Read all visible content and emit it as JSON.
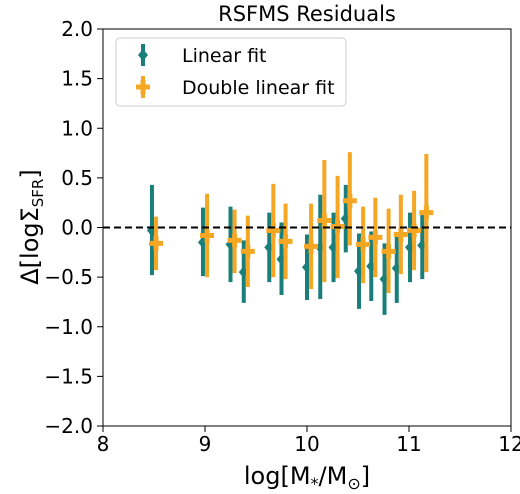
{
  "chart_data": {
    "type": "scatter",
    "title": "RSFMS Residuals",
    "xlabel_main": "log[M",
    "xlabel_sub1": "*",
    "xlabel_mid": "/M",
    "xlabel_sub2": "⊙",
    "xlabel_end": "]",
    "ylabel_main": "Δ[logΣ",
    "ylabel_sub": "SFR",
    "ylabel_end": "]",
    "xlim": [
      8,
      12
    ],
    "ylim": [
      -2.0,
      2.0
    ],
    "xticks": [
      8,
      9,
      10,
      11,
      12
    ],
    "xtick_labels": [
      "8",
      "9",
      "10",
      "11",
      "12"
    ],
    "yticks": [
      2.0,
      1.5,
      1.0,
      0.5,
      0.0,
      -0.5,
      -1.0,
      -1.5,
      -2.0
    ],
    "ytick_labels": [
      "2.0",
      "1.5",
      "1.0",
      "0.5",
      "0.0",
      "−0.5",
      "−1.0",
      "−1.5",
      "−2.0"
    ],
    "reference_line": {
      "y": 0.0,
      "style": "dashed",
      "color": "#000000"
    },
    "grid": false,
    "legend_position": "top-left",
    "series": [
      {
        "name": "Linear fit",
        "color": "#1a7f7a",
        "marker": "diamond",
        "points": [
          {
            "x": 8.48,
            "y": -0.03,
            "ylo": -0.48,
            "yhi": 0.43
          },
          {
            "x": 8.98,
            "y": -0.15,
            "ylo": -0.49,
            "yhi": 0.2
          },
          {
            "x": 9.25,
            "y": -0.17,
            "ylo": -0.55,
            "yhi": 0.21
          },
          {
            "x": 9.38,
            "y": -0.45,
            "ylo": -0.76,
            "yhi": -0.13
          },
          {
            "x": 9.63,
            "y": -0.2,
            "ylo": -0.55,
            "yhi": 0.15
          },
          {
            "x": 9.75,
            "y": -0.32,
            "ylo": -0.68,
            "yhi": 0.05
          },
          {
            "x": 10.0,
            "y": -0.4,
            "ylo": -0.73,
            "yhi": -0.07
          },
          {
            "x": 10.13,
            "y": -0.2,
            "ylo": -0.72,
            "yhi": 0.33
          },
          {
            "x": 10.26,
            "y": -0.2,
            "ylo": -0.55,
            "yhi": 0.15
          },
          {
            "x": 10.38,
            "y": 0.09,
            "ylo": -0.25,
            "yhi": 0.43
          },
          {
            "x": 10.51,
            "y": -0.44,
            "ylo": -0.82,
            "yhi": -0.06
          },
          {
            "x": 10.63,
            "y": -0.39,
            "ylo": -0.74,
            "yhi": -0.04
          },
          {
            "x": 10.76,
            "y": -0.52,
            "ylo": -0.88,
            "yhi": -0.16
          },
          {
            "x": 10.88,
            "y": -0.41,
            "ylo": -0.76,
            "yhi": -0.06
          },
          {
            "x": 11.01,
            "y": -0.2,
            "ylo": -0.55,
            "yhi": 0.15
          },
          {
            "x": 11.13,
            "y": -0.18,
            "ylo": -0.52,
            "yhi": 0.16
          }
        ]
      },
      {
        "name": "Double linear fit",
        "color": "#f5a623",
        "marker": "plus",
        "points": [
          {
            "x": 8.52,
            "y": -0.16,
            "ylo": -0.43,
            "yhi": 0.11
          },
          {
            "x": 9.02,
            "y": -0.08,
            "ylo": -0.5,
            "yhi": 0.34
          },
          {
            "x": 9.29,
            "y": -0.13,
            "ylo": -0.46,
            "yhi": 0.18
          },
          {
            "x": 9.42,
            "y": -0.24,
            "ylo": -0.6,
            "yhi": 0.12
          },
          {
            "x": 9.67,
            "y": -0.03,
            "ylo": -0.5,
            "yhi": 0.44
          },
          {
            "x": 9.79,
            "y": -0.14,
            "ylo": -0.52,
            "yhi": 0.24
          },
          {
            "x": 10.04,
            "y": -0.19,
            "ylo": -0.62,
            "yhi": 0.24
          },
          {
            "x": 10.17,
            "y": 0.07,
            "ylo": -0.55,
            "yhi": 0.68
          },
          {
            "x": 10.3,
            "y": 0.01,
            "ylo": -0.51,
            "yhi": 0.52
          },
          {
            "x": 10.42,
            "y": 0.27,
            "ylo": -0.18,
            "yhi": 0.76
          },
          {
            "x": 10.55,
            "y": -0.17,
            "ylo": -0.56,
            "yhi": 0.21
          },
          {
            "x": 10.67,
            "y": -0.1,
            "ylo": -0.5,
            "yhi": 0.3
          },
          {
            "x": 10.8,
            "y": -0.24,
            "ylo": -0.66,
            "yhi": 0.19
          },
          {
            "x": 10.92,
            "y": -0.07,
            "ylo": -0.47,
            "yhi": 0.33
          },
          {
            "x": 11.05,
            "y": -0.03,
            "ylo": -0.43,
            "yhi": 0.37
          },
          {
            "x": 11.17,
            "y": 0.15,
            "ylo": -0.45,
            "yhi": 0.74
          }
        ]
      }
    ]
  }
}
